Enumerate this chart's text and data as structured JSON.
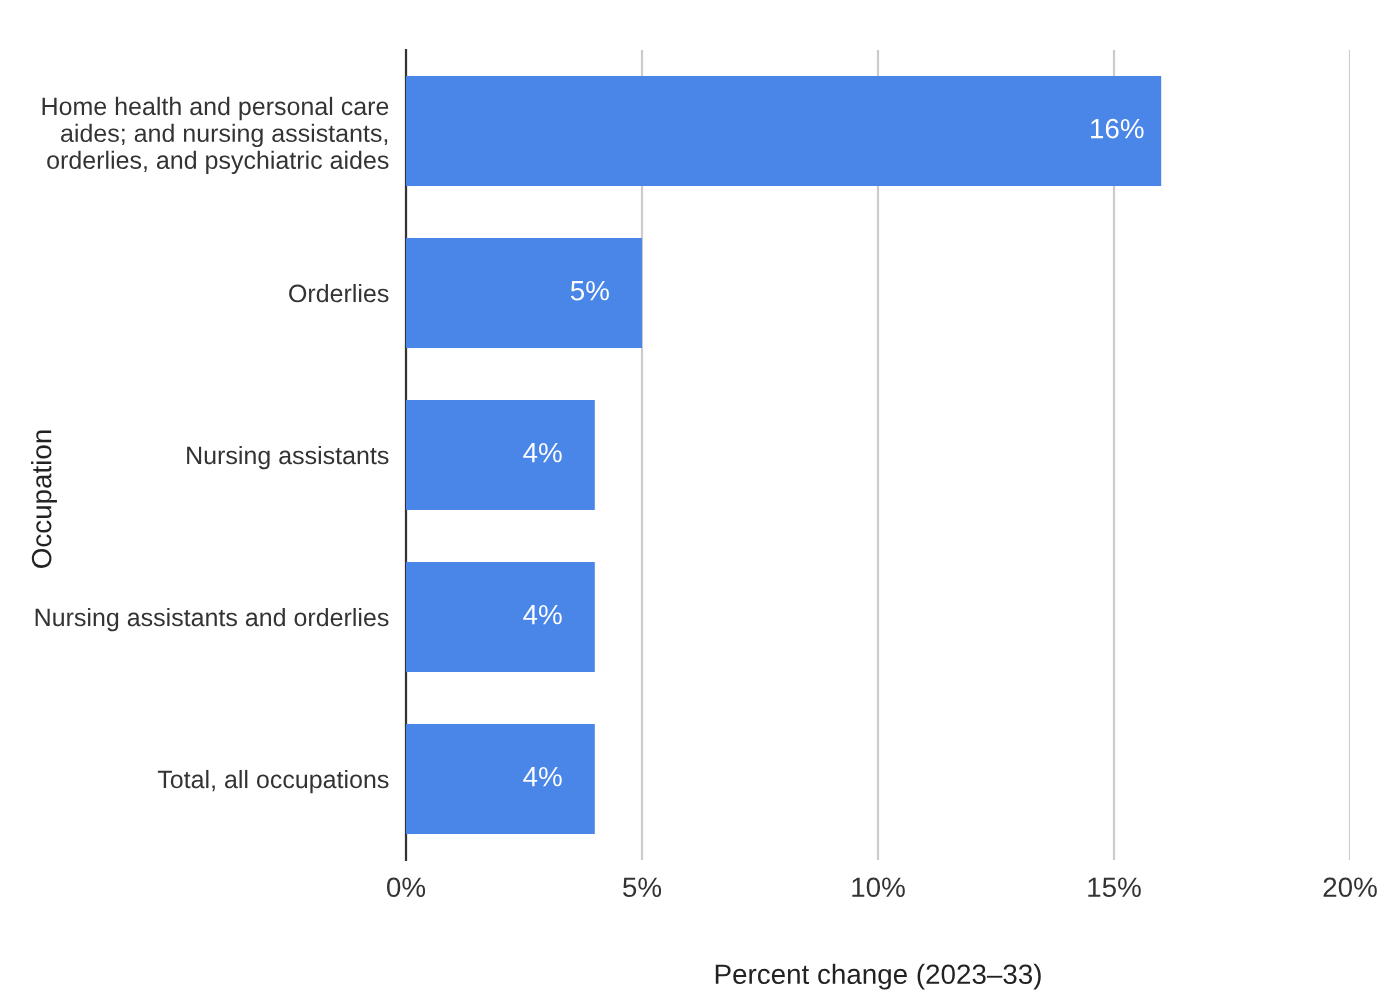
{
  "chart_data": {
    "type": "bar",
    "orientation": "horizontal",
    "xlabel": "Percent change (2023–33)",
    "ylabel": "Occupation",
    "categories": [
      "Home health and personal care\naides; and nursing assistants,\norderlies, and psychiatric aides",
      "Orderlies",
      "Nursing assistants",
      "Nursing assistants and orderlies",
      "Total, all occupations"
    ],
    "values": [
      16,
      5,
      4,
      4,
      4
    ],
    "value_labels": [
      "16%",
      "5%",
      "4%",
      "4%",
      "4%"
    ],
    "color": "#4a86e8",
    "xlim": [
      0,
      20
    ],
    "xticks": [
      {
        "value": 0,
        "label": "0%"
      },
      {
        "value": 5,
        "label": "5%"
      },
      {
        "value": 10,
        "label": "10%"
      },
      {
        "value": 15,
        "label": "15%"
      },
      {
        "value": 20,
        "label": "20%"
      }
    ],
    "grid": "x",
    "legend": false
  }
}
